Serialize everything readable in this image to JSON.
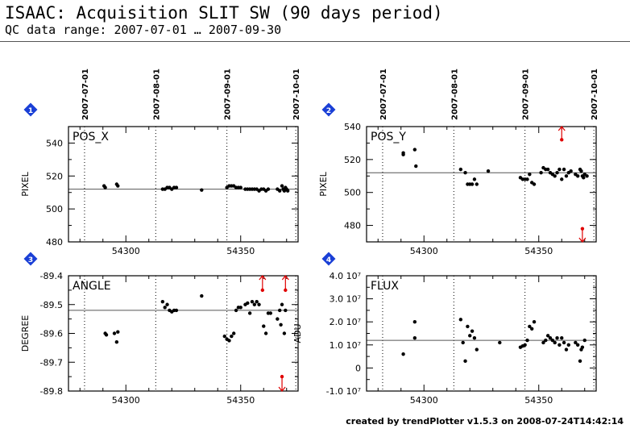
{
  "title": "ISAAC: Acquisition SLIT SW (90 days period)",
  "subtitle": "QC data range: 2007-07-01 … 2007-09-30",
  "footer": "created by trendPlotter v1.5.3 on 2008-07-24T14:42:14",
  "colors": {
    "data": "#000000",
    "outlier": "#e00000",
    "badge": "#1a3fd6"
  },
  "chart_data": [
    {
      "type": "scatter",
      "badge": "1",
      "title": "POS_X",
      "ylabel": "PIXEL",
      "xlabel": "",
      "xlim": [
        54275,
        54375
      ],
      "ylim": [
        480,
        550
      ],
      "xticks": [
        54300,
        54350
      ],
      "xtick_labels": [
        "54300",
        "54350"
      ],
      "yticks": [
        480,
        500,
        520,
        540
      ],
      "ytick_labels": [
        "480",
        "500",
        "520",
        "540"
      ],
      "date_markers": [
        {
          "x": 54282,
          "label": "2007-07-01"
        },
        {
          "x": 54313,
          "label": "2007-08-01"
        },
        {
          "x": 54344,
          "label": "2007-09-01"
        },
        {
          "x": 54374,
          "label": "2007-10-01"
        }
      ],
      "reference_line": 512,
      "points": [
        [
          54290.5,
          514
        ],
        [
          54291,
          513
        ],
        [
          54296,
          515
        ],
        [
          54296.5,
          514
        ],
        [
          54316,
          512
        ],
        [
          54317,
          512
        ],
        [
          54318,
          513
        ],
        [
          54319,
          513
        ],
        [
          54320,
          512
        ],
        [
          54321,
          513
        ],
        [
          54322,
          513
        ],
        [
          54333,
          511.5
        ],
        [
          54344,
          513
        ],
        [
          54345,
          514
        ],
        [
          54346,
          514
        ],
        [
          54347,
          514
        ],
        [
          54348,
          513
        ],
        [
          54349,
          513
        ],
        [
          54350,
          513
        ],
        [
          54352,
          512
        ],
        [
          54353,
          512
        ],
        [
          54354,
          512
        ],
        [
          54355,
          512
        ],
        [
          54356,
          512
        ],
        [
          54357,
          512
        ],
        [
          54358,
          511
        ],
        [
          54359,
          512
        ],
        [
          54360,
          512
        ],
        [
          54361,
          511
        ],
        [
          54362,
          512
        ],
        [
          54366,
          512
        ],
        [
          54367,
          511
        ],
        [
          54368,
          514
        ],
        [
          54368.5,
          512
        ],
        [
          54369,
          511
        ],
        [
          54369.5,
          513
        ],
        [
          54370,
          512
        ],
        [
          54370.5,
          511
        ]
      ],
      "outliers": []
    },
    {
      "type": "scatter",
      "badge": "2",
      "title": "POS_Y",
      "ylabel": "PIXEL",
      "xlabel": "",
      "xlim": [
        54275,
        54375
      ],
      "ylim": [
        470,
        540
      ],
      "xticks": [
        54300,
        54350
      ],
      "xtick_labels": [
        "54300",
        "54350"
      ],
      "yticks": [
        480,
        500,
        520,
        540
      ],
      "ytick_labels": [
        "480",
        "500",
        "520",
        "540"
      ],
      "date_markers": [
        {
          "x": 54282,
          "label": "2007-07-01"
        },
        {
          "x": 54313,
          "label": "2007-08-01"
        },
        {
          "x": 54344,
          "label": "2007-09-01"
        },
        {
          "x": 54374,
          "label": "2007-10-01"
        }
      ],
      "reference_line": 512,
      "points": [
        [
          54291,
          524
        ],
        [
          54291,
          523
        ],
        [
          54296,
          526
        ],
        [
          54296.5,
          516
        ],
        [
          54316,
          514
        ],
        [
          54318,
          512
        ],
        [
          54319,
          505
        ],
        [
          54320,
          505
        ],
        [
          54321,
          505
        ],
        [
          54322,
          508
        ],
        [
          54323,
          505
        ],
        [
          54328,
          513
        ],
        [
          54342,
          509
        ],
        [
          54343,
          508
        ],
        [
          54344,
          508
        ],
        [
          54345,
          508
        ],
        [
          54346,
          511
        ],
        [
          54347,
          506
        ],
        [
          54348,
          505
        ],
        [
          54351,
          512
        ],
        [
          54352,
          515
        ],
        [
          54353,
          514
        ],
        [
          54354,
          514
        ],
        [
          54355,
          512
        ],
        [
          54356,
          511
        ],
        [
          54357,
          510
        ],
        [
          54358,
          512
        ],
        [
          54359,
          514
        ],
        [
          54360,
          508
        ],
        [
          54361,
          514
        ],
        [
          54362,
          510
        ],
        [
          54363,
          512
        ],
        [
          54364,
          513
        ],
        [
          54366,
          511
        ],
        [
          54367,
          510
        ],
        [
          54368,
          514
        ],
        [
          54368.5,
          513
        ],
        [
          54369,
          510
        ],
        [
          54369.5,
          509
        ],
        [
          54370,
          511
        ],
        [
          54371,
          510
        ]
      ],
      "outliers": [
        {
          "x": 54360,
          "y": 532,
          "direction": "up"
        },
        {
          "x": 54369,
          "y": 478,
          "direction": "down"
        }
      ]
    },
    {
      "type": "scatter",
      "badge": "3",
      "title": "ANGLE",
      "ylabel": "DEGREE",
      "xlabel": "",
      "xlim": [
        54275,
        54375
      ],
      "ylim": [
        -89.8,
        -89.4
      ],
      "xticks": [
        54300,
        54350
      ],
      "xtick_labels": [
        "54300",
        "54350"
      ],
      "yticks": [
        -89.8,
        -89.7,
        -89.6,
        -89.5,
        -89.4
      ],
      "ytick_labels": [
        "-89.8",
        "-89.7",
        "-89.6",
        "-89.5",
        "-89.4"
      ],
      "date_markers": [
        {
          "x": 54282,
          "label": ""
        },
        {
          "x": 54313,
          "label": ""
        },
        {
          "x": 54344,
          "label": ""
        },
        {
          "x": 54374,
          "label": ""
        }
      ],
      "reference_line": -89.52,
      "points": [
        [
          54291,
          -89.6
        ],
        [
          54291.5,
          -89.605
        ],
        [
          54295,
          -89.6
        ],
        [
          54296,
          -89.63
        ],
        [
          54296.5,
          -89.595
        ],
        [
          54316,
          -89.49
        ],
        [
          54317,
          -89.51
        ],
        [
          54318,
          -89.5
        ],
        [
          54319,
          -89.52
        ],
        [
          54320,
          -89.525
        ],
        [
          54321,
          -89.52
        ],
        [
          54322,
          -89.52
        ],
        [
          54333,
          -89.47
        ],
        [
          54343,
          -89.61
        ],
        [
          54344,
          -89.62
        ],
        [
          54345,
          -89.625
        ],
        [
          54346,
          -89.61
        ],
        [
          54347,
          -89.6
        ],
        [
          54348,
          -89.52
        ],
        [
          54349,
          -89.51
        ],
        [
          54350,
          -89.51
        ],
        [
          54352,
          -89.5
        ],
        [
          54353,
          -89.495
        ],
        [
          54354,
          -89.53
        ],
        [
          54355,
          -89.49
        ],
        [
          54356,
          -89.5
        ],
        [
          54357,
          -89.49
        ],
        [
          54358,
          -89.5
        ],
        [
          54360,
          -89.575
        ],
        [
          54361,
          -89.6
        ],
        [
          54362,
          -89.53
        ],
        [
          54363,
          -89.53
        ],
        [
          54366,
          -89.55
        ],
        [
          54367,
          -89.52
        ],
        [
          54367.5,
          -89.57
        ],
        [
          54368,
          -89.5
        ],
        [
          54369,
          -89.6
        ],
        [
          54369.5,
          -89.52
        ]
      ],
      "outliers": [
        {
          "x": 54359.5,
          "y": -89.45,
          "direction": "up"
        },
        {
          "x": 54369.5,
          "y": -89.45,
          "direction": "up"
        },
        {
          "x": 54368,
          "y": -89.75,
          "direction": "down"
        }
      ]
    },
    {
      "type": "scatter",
      "badge": "4",
      "title": "FLUX",
      "ylabel": "ADU",
      "xlabel": "",
      "xlim": [
        54275,
        54375
      ],
      "ylim": [
        -10000000,
        40000000
      ],
      "xticks": [
        54300,
        54350
      ],
      "xtick_labels": [
        "54300",
        "54350"
      ],
      "yticks": [
        -10000000,
        0,
        10000000,
        20000000,
        30000000,
        40000000
      ],
      "ytick_labels": [
        "-1.0 10⁷",
        "0",
        "1.0 10⁷",
        "2.0 10⁷",
        "3.0 10⁷",
        "4.0 10⁷"
      ],
      "date_markers": [
        {
          "x": 54282,
          "label": ""
        },
        {
          "x": 54313,
          "label": ""
        },
        {
          "x": 54344,
          "label": ""
        },
        {
          "x": 54374,
          "label": ""
        }
      ],
      "reference_line": 12000000,
      "points": [
        [
          54291,
          6000000
        ],
        [
          54296,
          20000000
        ],
        [
          54296,
          13000000
        ],
        [
          54316,
          21000000
        ],
        [
          54317,
          11000000
        ],
        [
          54318,
          3000000
        ],
        [
          54319,
          18000000
        ],
        [
          54320,
          14000000
        ],
        [
          54321,
          16000000
        ],
        [
          54322,
          13000000
        ],
        [
          54323,
          8000000
        ],
        [
          54333,
          11000000
        ],
        [
          54342,
          9000000
        ],
        [
          54343,
          9500000
        ],
        [
          54344,
          10000000
        ],
        [
          54345,
          12000000
        ],
        [
          54346,
          18000000
        ],
        [
          54347,
          17000000
        ],
        [
          54348,
          20000000
        ],
        [
          54352,
          11000000
        ],
        [
          54353,
          12000000
        ],
        [
          54354,
          14000000
        ],
        [
          54355,
          13000000
        ],
        [
          54356,
          12000000
        ],
        [
          54357,
          11000000
        ],
        [
          54358,
          13000000
        ],
        [
          54359,
          10000000
        ],
        [
          54360,
          13000000
        ],
        [
          54361,
          11000000
        ],
        [
          54362,
          8000000
        ],
        [
          54363,
          10000000
        ],
        [
          54366,
          11000000
        ],
        [
          54367,
          10000000
        ],
        [
          54368,
          3000000
        ],
        [
          54368.5,
          8000000
        ],
        [
          54369,
          9000000
        ],
        [
          54370,
          12000000
        ]
      ],
      "outliers": []
    }
  ]
}
